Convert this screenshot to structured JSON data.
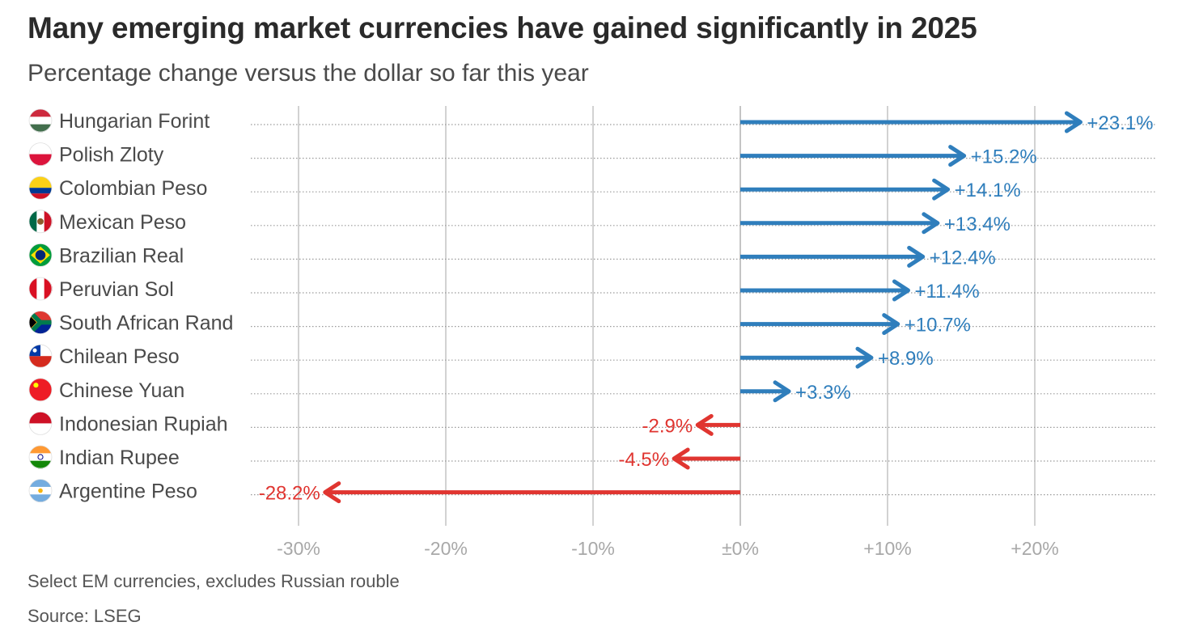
{
  "title": "Many emerging market currencies have gained significantly in 2025",
  "subtitle": "Percentage change versus the dollar so far this year",
  "footnote": "Select EM currencies, excludes Russian rouble",
  "source": "Source: LSEG",
  "colors": {
    "positive": "#2f7ebc",
    "negative": "#e03530",
    "grid": "#c4c4c4",
    "tick": "#a8a8a8",
    "label": "#4a4a4a"
  },
  "chart_data": {
    "type": "bar",
    "orientation": "horizontal",
    "style": "arrow",
    "xlim": [
      -32.5,
      28.5
    ],
    "xticks": [
      -30,
      -20,
      -10,
      0,
      10,
      20
    ],
    "xtick_labels": [
      "-30%",
      "-20%",
      "-10%",
      "±0%",
      "+10%",
      "+20%"
    ],
    "categories": [
      "Hungarian Forint",
      "Polish Zloty",
      "Colombian Peso",
      "Mexican Peso",
      "Brazilian Real",
      "Peruvian Sol",
      "South African Rand",
      "Chilean Peso",
      "Chinese Yuan",
      "Indonesian Rupiah",
      "Indian Rupee",
      "Argentine Peso"
    ],
    "flags": [
      "hungary-flag-icon",
      "poland-flag-icon",
      "colombia-flag-icon",
      "mexico-flag-icon",
      "brazil-flag-icon",
      "peru-flag-icon",
      "south-africa-flag-icon",
      "chile-flag-icon",
      "china-flag-icon",
      "indonesia-flag-icon",
      "india-flag-icon",
      "argentina-flag-icon"
    ],
    "values": [
      23.1,
      15.2,
      14.1,
      13.4,
      12.4,
      11.4,
      10.7,
      8.9,
      3.3,
      -2.9,
      -4.5,
      -28.2
    ],
    "value_labels": [
      "+23.1%",
      "+15.2%",
      "+14.1%",
      "+13.4%",
      "+12.4%",
      "+11.4%",
      "+10.7%",
      "+8.9%",
      "+3.3%",
      "-2.9%",
      "-4.5%",
      "-28.2%"
    ],
    "xlabel": "",
    "ylabel": ""
  }
}
